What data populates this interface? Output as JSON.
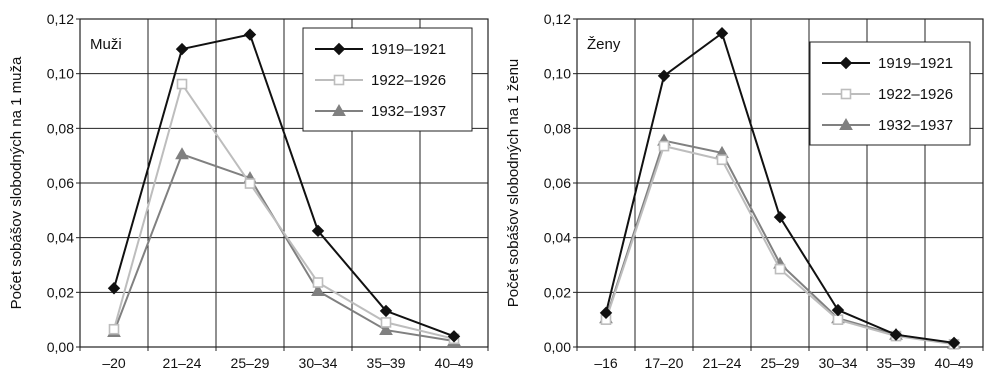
{
  "chart_data": [
    {
      "type": "line",
      "title": "Muži",
      "xlabel": "",
      "ylabel": "Počet sobášov slobodných na 1 muža",
      "categories": [
        "–20",
        "21–24",
        "25–29",
        "30–34",
        "35–39",
        "40–49"
      ],
      "ylim": [
        0,
        0.12
      ],
      "yticks": [
        "0,00",
        "0,02",
        "0,04",
        "0,06",
        "0,08",
        "0,10",
        "0,12"
      ],
      "grid": true,
      "legend_position": "top-right",
      "series": [
        {
          "name": "1919–1921",
          "color": "#111111",
          "marker": "diamond",
          "values": [
            0.0215,
            0.109,
            0.1143,
            0.0425,
            0.0132,
            0.0039
          ]
        },
        {
          "name": "1922–1926",
          "color": "#bdbdbd",
          "marker": "square-open",
          "values": [
            0.0065,
            0.0962,
            0.0598,
            0.0236,
            0.009,
            0.003
          ]
        },
        {
          "name": "1932–1937",
          "color": "#808080",
          "marker": "triangle",
          "values": [
            0.0055,
            0.0705,
            0.0618,
            0.0205,
            0.0062,
            0.0022
          ]
        }
      ]
    },
    {
      "type": "line",
      "title": "Ženy",
      "xlabel": "",
      "ylabel": "Počet sobášov slobodných na 1 ženu",
      "categories": [
        "–16",
        "17–20",
        "21–24",
        "25–29",
        "30–34",
        "35–39",
        "40–49"
      ],
      "ylim": [
        0,
        0.12
      ],
      "yticks": [
        "0,00",
        "0,02",
        "0,04",
        "0,06",
        "0,08",
        "0,10",
        "0,12"
      ],
      "grid": true,
      "legend_position": "top-right",
      "series": [
        {
          "name": "1919–1921",
          "color": "#111111",
          "marker": "diamond",
          "values": [
            0.0125,
            0.0992,
            0.1148,
            0.0475,
            0.0135,
            0.0045,
            0.0015
          ]
        },
        {
          "name": "1922–1926",
          "color": "#bdbdbd",
          "marker": "square-open",
          "values": [
            0.01,
            0.0735,
            0.0685,
            0.0285,
            0.01,
            0.004,
            0.001
          ]
        },
        {
          "name": "1932–1937",
          "color": "#808080",
          "marker": "triangle",
          "values": [
            0.0105,
            0.0755,
            0.071,
            0.0305,
            0.0105,
            0.0045,
            0.0012
          ]
        }
      ]
    }
  ]
}
